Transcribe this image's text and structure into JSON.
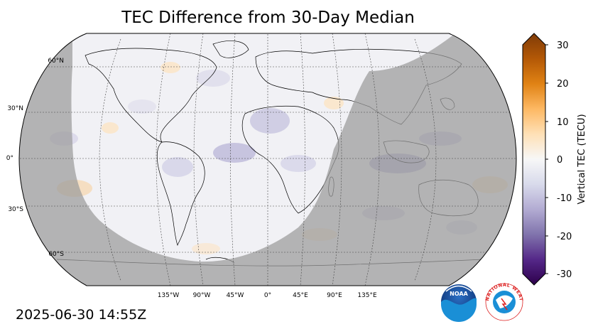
{
  "title": "TEC Difference from 30-Day Median",
  "timestamp": "2025-06-30 14:55Z",
  "map": {
    "projection": "Robinson",
    "latitude_labels": [
      "60°N",
      "30°N",
      "0°",
      "30°S",
      "60°S"
    ],
    "longitude_labels": [
      "135°W",
      "90°W",
      "45°W",
      "0°",
      "45°E",
      "90°E",
      "135°E"
    ],
    "night_overlay_color": "#9b9b9b",
    "day_color": "#f1f1f5"
  },
  "colorbar": {
    "label": "Vertical TEC (TECU)",
    "min": -30,
    "max": 30,
    "ticks": [
      "30",
      "20",
      "10",
      "0",
      "-10",
      "-20",
      "-30"
    ],
    "colors_top_to_bottom": [
      "#7f3b08",
      "#b35806",
      "#e08214",
      "#fdb863",
      "#fee0b6",
      "#f7f7f7",
      "#d8daeb",
      "#b2abd2",
      "#8073ac",
      "#542788",
      "#2d004b"
    ]
  },
  "logos": {
    "noaa": "NOAA",
    "nws": "NATIONAL WEATHER SERVICE"
  }
}
